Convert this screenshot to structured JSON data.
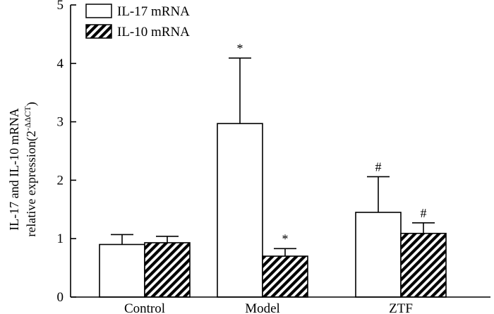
{
  "chart_data": {
    "type": "bar",
    "categories": [
      "Control",
      "Model",
      "ZTF"
    ],
    "series": [
      {
        "name": "IL-17 mRNA",
        "values": [
          0.9,
          2.97,
          1.45
        ],
        "errors": [
          0.17,
          1.12,
          0.61
        ],
        "markers": [
          "",
          "*",
          "#"
        ],
        "fill": "#ffffff",
        "pattern": "none"
      },
      {
        "name": "IL-10 mRNA",
        "values": [
          0.93,
          0.7,
          1.09
        ],
        "errors": [
          0.11,
          0.13,
          0.18
        ],
        "markers": [
          "",
          "*",
          "#"
        ],
        "fill": "#000000",
        "pattern": "diagonal-hatch"
      }
    ],
    "ylabel_line1": "IL-17 and IL-10 mRNA",
    "ylabel_line2_prefix": "relative expression(2",
    "ylabel_superscript": "-ΔΔCT",
    "ylabel_line2_suffix": ")",
    "ylim": [
      0,
      5
    ],
    "yticks": [
      0,
      1,
      2,
      3,
      4,
      5
    ],
    "legend_position": "top-left",
    "grid": false
  }
}
